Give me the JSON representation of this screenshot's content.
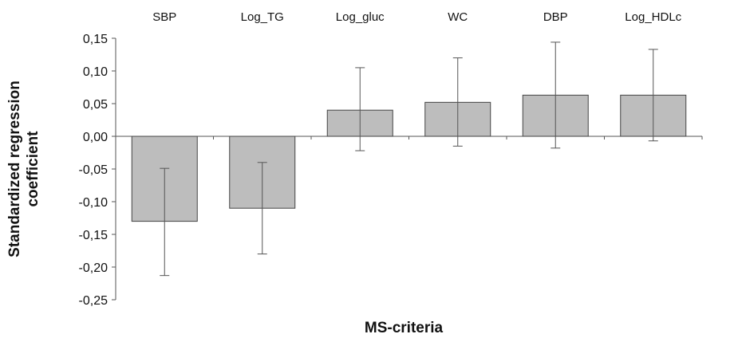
{
  "chart_data": {
    "type": "bar",
    "title": "",
    "xlabel": "MS-criteria",
    "ylabel_lines": [
      "Standardized regression",
      "coefficient"
    ],
    "categories": [
      "SBP",
      "Log_TG",
      "Log_gluc",
      "WC",
      "DBP",
      "Log_HDLc"
    ],
    "values": [
      -0.13,
      -0.11,
      0.04,
      0.052,
      0.063,
      0.063
    ],
    "error_low": [
      -0.213,
      -0.18,
      -0.022,
      -0.015,
      -0.018,
      -0.007
    ],
    "error_high": [
      -0.049,
      -0.04,
      0.105,
      0.12,
      0.144,
      0.133
    ],
    "ylim": [
      -0.25,
      0.15
    ],
    "yticks": [
      0.15,
      0.1,
      0.05,
      0.0,
      -0.05,
      -0.1,
      -0.15,
      -0.2,
      -0.25
    ],
    "ytick_labels": [
      "0,15",
      "0,10",
      "0,05",
      "0,00",
      "-0,05",
      "-0,10",
      "-0,15",
      "-0,20",
      "-0,25"
    ],
    "category_label_position": "top",
    "grid": false,
    "legend": "none",
    "bar_color": "#bdbdbd",
    "bar_edge_color": "#444444"
  }
}
